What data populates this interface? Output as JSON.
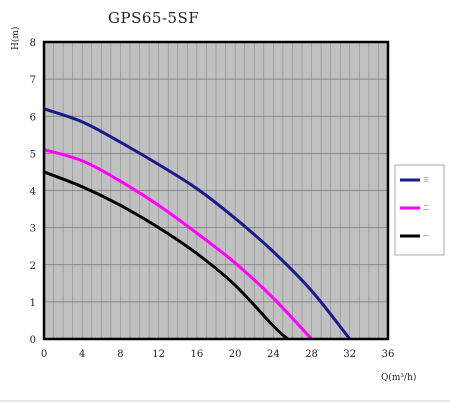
{
  "chart_data": {
    "type": "line",
    "title": "GPS65-5SF",
    "xlabel": "Q(m³/h)",
    "ylabel": "H(m)",
    "xlim": [
      0,
      36
    ],
    "ylim": [
      0,
      8
    ],
    "x_ticks": [
      "0",
      "4",
      "8",
      "12",
      "16",
      "20",
      "24",
      "28",
      "32",
      "36"
    ],
    "y_ticks": [
      "0",
      "1",
      "2",
      "3",
      "4",
      "5",
      "6",
      "7",
      "8"
    ],
    "grid": true,
    "legend_position": "right",
    "series": [
      {
        "name": "三",
        "color": "#1a1a8c",
        "x": [
          0,
          4,
          8,
          12,
          16,
          20,
          24,
          28,
          32
        ],
        "y": [
          6.2,
          5.85,
          5.3,
          4.7,
          4.05,
          3.25,
          2.35,
          1.3,
          0
        ]
      },
      {
        "name": "二",
        "color": "#ff00ff",
        "x": [
          0,
          4,
          8,
          12,
          16,
          20,
          24,
          28
        ],
        "y": [
          5.1,
          4.8,
          4.25,
          3.6,
          2.85,
          2.05,
          1.1,
          0
        ]
      },
      {
        "name": "一",
        "color": "#000000",
        "x": [
          0,
          4,
          8,
          12,
          16,
          20,
          24,
          25.5
        ],
        "y": [
          4.5,
          4.1,
          3.6,
          3.0,
          2.3,
          1.45,
          0.35,
          0
        ]
      }
    ]
  }
}
